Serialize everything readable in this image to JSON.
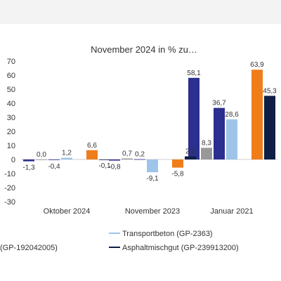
{
  "chart_data": {
    "type": "bar",
    "title": "November 2024 in % zu…",
    "categories": [
      "Oktober 2024",
      "November 2023",
      "Januar 2021"
    ],
    "ylim": [
      -30,
      70
    ],
    "yticks": [
      70,
      60,
      50,
      40,
      30,
      20,
      10,
      0,
      -10,
      -20,
      -30
    ],
    "grid": false,
    "legend_position": "bottom",
    "series": [
      {
        "name": "",
        "color": "#2b2f8f",
        "values": [
          -1.3,
          -0.8,
          58.1
        ],
        "labels": [
          "-1,3",
          "-0,8",
          "58,1"
        ]
      },
      {
        "name": "",
        "color": "#999999",
        "values": [
          0.0,
          0.7,
          8.3
        ],
        "labels": [
          "0,0",
          "0,7",
          "8,3"
        ]
      },
      {
        "name": "",
        "color": "#2b2f8f",
        "values": [
          -0.4,
          0.2,
          36.7
        ],
        "labels": [
          "-0,4",
          "0,2",
          "36,7"
        ]
      },
      {
        "name": "Transportbeton (GP-2363)",
        "color": "#9fc4ea",
        "values": [
          1.2,
          -9.1,
          28.6
        ],
        "labels": [
          "1,2",
          "-9,1",
          "28,6"
        ]
      },
      {
        "name": "",
        "color": "#23a0d8",
        "values": [
          null,
          null,
          null
        ],
        "labels": [
          "",
          "",
          ""
        ]
      },
      {
        "name": "",
        "color": "#ef7d1a",
        "values": [
          6.6,
          -5.8,
          63.9
        ],
        "labels": [
          "6,6",
          "-5,8",
          "63,9"
        ]
      },
      {
        "name": "Asphaltmischgut (GP-239913200)",
        "color": "#0e1f45",
        "values": [
          -0.1,
          2.2,
          45.3
        ],
        "labels": [
          "-0,1",
          "2,2",
          "45,3"
        ]
      }
    ],
    "legend_extra_text": "(GP-192042005)"
  }
}
